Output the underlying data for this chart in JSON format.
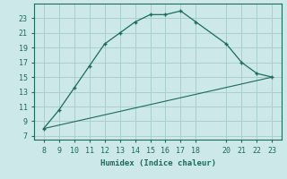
{
  "line1_x": [
    8,
    9,
    10,
    11,
    12,
    13,
    14,
    15,
    16,
    17,
    18,
    20,
    21,
    22,
    23
  ],
  "line1_y": [
    8.0,
    10.5,
    13.5,
    16.5,
    19.5,
    21.0,
    22.5,
    23.5,
    23.5,
    24.0,
    22.5,
    19.5,
    17.0,
    15.5,
    15.0
  ],
  "line2_x": [
    8,
    23
  ],
  "line2_y": [
    8.0,
    15.0
  ],
  "line_color": "#1a6b5e",
  "bg_color": "#cce8e8",
  "grid_color": "#aacece",
  "xlabel": "Humidex (Indice chaleur)",
  "xticks": [
    8,
    9,
    10,
    11,
    12,
    13,
    14,
    15,
    16,
    17,
    18,
    20,
    21,
    22,
    23
  ],
  "yticks": [
    7,
    9,
    11,
    13,
    15,
    17,
    19,
    21,
    23
  ],
  "xlim": [
    7.4,
    23.6
  ],
  "ylim": [
    6.5,
    25.0
  ],
  "label_fontsize": 6.5,
  "tick_fontsize": 6.0
}
